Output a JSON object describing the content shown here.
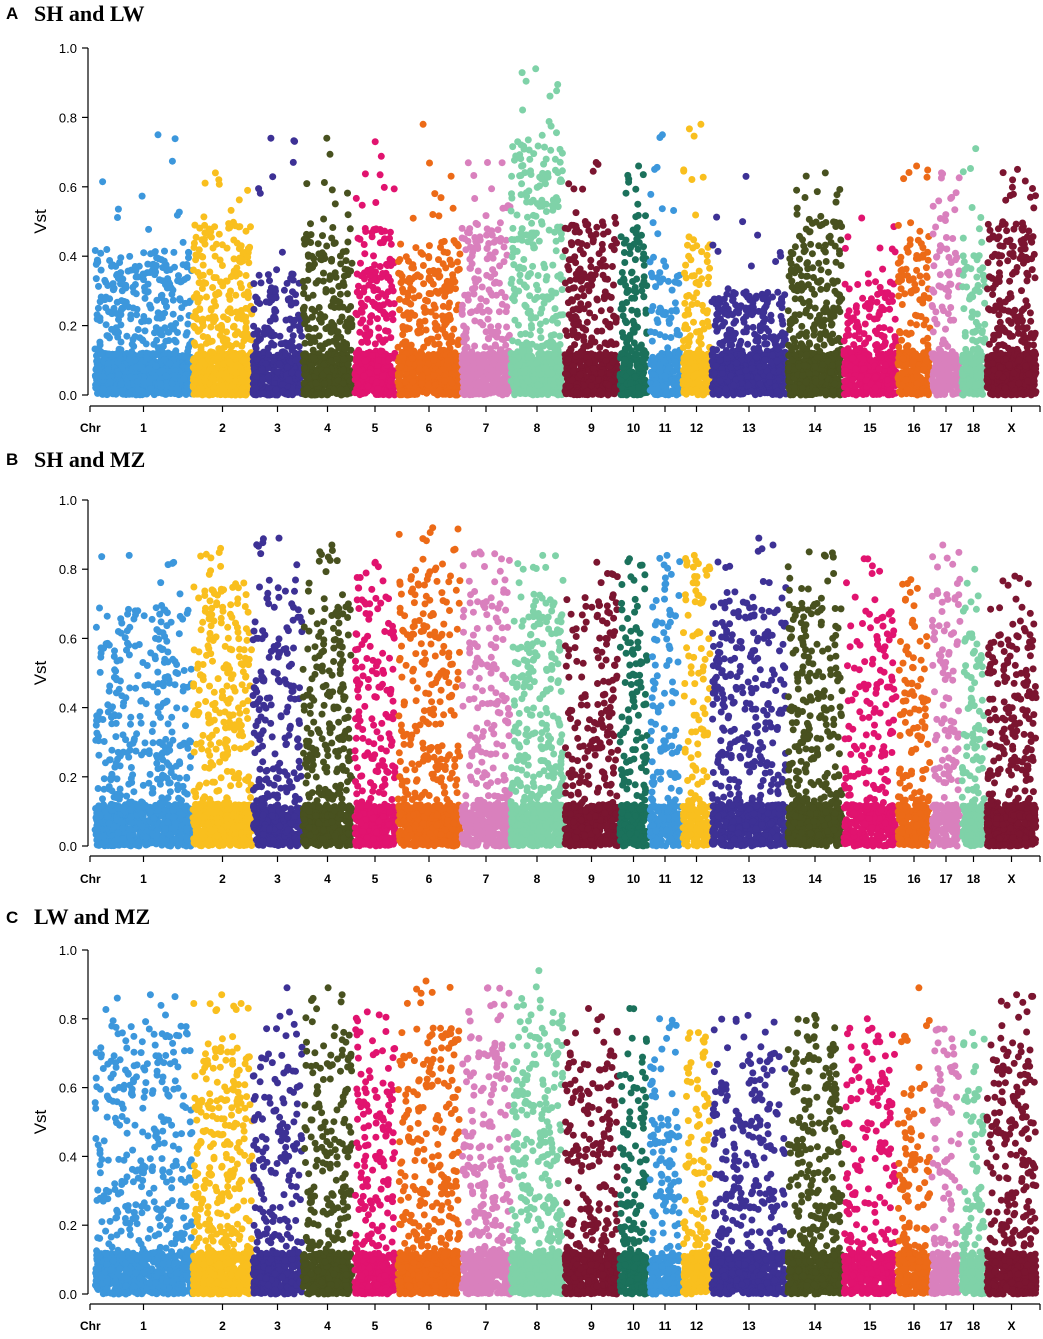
{
  "chart_data": [
    {
      "type": "scatter",
      "panel_label": "A",
      "title": "SH and LW",
      "ylabel": "Vst",
      "xlabel_prefix": "Chr",
      "ylim": [
        0,
        1.0
      ],
      "yticks": [
        "0.0",
        "0.2",
        "0.4",
        "0.6",
        "0.8",
        "1.0"
      ],
      "grid": false,
      "chromosomes": [
        {
          "name": "1",
          "n_points": 900,
          "max": 0.75,
          "typical_max": 0.42
        },
        {
          "name": "2",
          "n_points": 700,
          "max": 0.64,
          "typical_max": 0.5
        },
        {
          "name": "3",
          "n_points": 450,
          "max": 0.74,
          "typical_max": 0.35
        },
        {
          "name": "4",
          "n_points": 500,
          "max": 0.74,
          "typical_max": 0.48
        },
        {
          "name": "5",
          "n_points": 400,
          "max": 0.73,
          "typical_max": 0.48
        },
        {
          "name": "6",
          "n_points": 650,
          "max": 0.78,
          "typical_max": 0.45
        },
        {
          "name": "7",
          "n_points": 450,
          "max": 0.67,
          "typical_max": 0.5
        },
        {
          "name": "8",
          "n_points": 650,
          "max": 0.94,
          "typical_max": 0.75
        },
        {
          "name": "9",
          "n_points": 500,
          "max": 0.67,
          "typical_max": 0.5
        },
        {
          "name": "10",
          "n_points": 280,
          "max": 0.66,
          "typical_max": 0.52
        },
        {
          "name": "11",
          "n_points": 230,
          "max": 0.75,
          "typical_max": 0.4
        },
        {
          "name": "12",
          "n_points": 230,
          "max": 0.78,
          "typical_max": 0.45
        },
        {
          "name": "13",
          "n_points": 650,
          "max": 0.63,
          "typical_max": 0.3
        },
        {
          "name": "14",
          "n_points": 600,
          "max": 0.64,
          "typical_max": 0.5
        },
        {
          "name": "15",
          "n_points": 400,
          "max": 0.51,
          "typical_max": 0.33
        },
        {
          "name": "16",
          "n_points": 280,
          "max": 0.66,
          "typical_max": 0.45
        },
        {
          "name": "17",
          "n_points": 230,
          "max": 0.64,
          "typical_max": 0.55
        },
        {
          "name": "18",
          "n_points": 200,
          "max": 0.71,
          "typical_max": 0.45
        },
        {
          "name": "X",
          "n_points": 550,
          "max": 0.65,
          "typical_max": 0.5
        }
      ]
    },
    {
      "type": "scatter",
      "panel_label": "B",
      "title": "SH and MZ",
      "ylabel": "Vst",
      "xlabel_prefix": "Chr",
      "ylim": [
        0,
        1.0
      ],
      "yticks": [
        "0.0",
        "0.2",
        "0.4",
        "0.6",
        "0.8",
        "1.0"
      ],
      "grid": false,
      "chromosomes": [
        {
          "name": "1",
          "n_points": 900,
          "max": 0.84,
          "typical_max": 0.7
        },
        {
          "name": "2",
          "n_points": 700,
          "max": 0.86,
          "typical_max": 0.75
        },
        {
          "name": "3",
          "n_points": 450,
          "max": 0.89,
          "typical_max": 0.75
        },
        {
          "name": "4",
          "n_points": 500,
          "max": 0.87,
          "typical_max": 0.75
        },
        {
          "name": "5",
          "n_points": 400,
          "max": 0.82,
          "typical_max": 0.75
        },
        {
          "name": "6",
          "n_points": 650,
          "max": 0.92,
          "typical_max": 0.8
        },
        {
          "name": "7",
          "n_points": 450,
          "max": 0.85,
          "typical_max": 0.75
        },
        {
          "name": "8",
          "n_points": 650,
          "max": 0.84,
          "typical_max": 0.72
        },
        {
          "name": "9",
          "n_points": 500,
          "max": 0.82,
          "typical_max": 0.7
        },
        {
          "name": "10",
          "n_points": 280,
          "max": 0.83,
          "typical_max": 0.7
        },
        {
          "name": "11",
          "n_points": 230,
          "max": 0.84,
          "typical_max": 0.75
        },
        {
          "name": "12",
          "n_points": 230,
          "max": 0.84,
          "typical_max": 0.8
        },
        {
          "name": "13",
          "n_points": 650,
          "max": 0.89,
          "typical_max": 0.72
        },
        {
          "name": "14",
          "n_points": 600,
          "max": 0.85,
          "typical_max": 0.72
        },
        {
          "name": "15",
          "n_points": 400,
          "max": 0.83,
          "typical_max": 0.68
        },
        {
          "name": "16",
          "n_points": 280,
          "max": 0.77,
          "typical_max": 0.6
        },
        {
          "name": "17",
          "n_points": 230,
          "max": 0.87,
          "typical_max": 0.75
        },
        {
          "name": "18",
          "n_points": 200,
          "max": 0.8,
          "typical_max": 0.6
        },
        {
          "name": "X",
          "n_points": 550,
          "max": 0.78,
          "typical_max": 0.65
        }
      ]
    },
    {
      "type": "scatter",
      "panel_label": "C",
      "title": "LW and MZ",
      "ylabel": "Vst",
      "xlabel_prefix": "Chr",
      "ylim": [
        0,
        1.0
      ],
      "yticks": [
        "0.0",
        "0.2",
        "0.4",
        "0.6",
        "0.8",
        "1.0"
      ],
      "grid": false,
      "chromosomes": [
        {
          "name": "1",
          "n_points": 900,
          "max": 0.87,
          "typical_max": 0.78
        },
        {
          "name": "2",
          "n_points": 700,
          "max": 0.87,
          "typical_max": 0.72
        },
        {
          "name": "3",
          "n_points": 450,
          "max": 0.89,
          "typical_max": 0.7
        },
        {
          "name": "4",
          "n_points": 500,
          "max": 0.89,
          "typical_max": 0.78
        },
        {
          "name": "5",
          "n_points": 400,
          "max": 0.82,
          "typical_max": 0.72
        },
        {
          "name": "6",
          "n_points": 650,
          "max": 0.91,
          "typical_max": 0.78
        },
        {
          "name": "7",
          "n_points": 450,
          "max": 0.89,
          "typical_max": 0.75
        },
        {
          "name": "8",
          "n_points": 650,
          "max": 0.94,
          "typical_max": 0.82
        },
        {
          "name": "9",
          "n_points": 500,
          "max": 0.83,
          "typical_max": 0.7
        },
        {
          "name": "10",
          "n_points": 280,
          "max": 0.83,
          "typical_max": 0.65
        },
        {
          "name": "11",
          "n_points": 230,
          "max": 0.8,
          "typical_max": 0.68
        },
        {
          "name": "12",
          "n_points": 230,
          "max": 0.76,
          "typical_max": 0.68
        },
        {
          "name": "13",
          "n_points": 650,
          "max": 0.81,
          "typical_max": 0.72
        },
        {
          "name": "14",
          "n_points": 600,
          "max": 0.81,
          "typical_max": 0.72
        },
        {
          "name": "15",
          "n_points": 400,
          "max": 0.8,
          "typical_max": 0.7
        },
        {
          "name": "16",
          "n_points": 280,
          "max": 0.89,
          "typical_max": 0.6
        },
        {
          "name": "17",
          "n_points": 230,
          "max": 0.77,
          "typical_max": 0.7
        },
        {
          "name": "18",
          "n_points": 200,
          "max": 0.76,
          "typical_max": 0.6
        },
        {
          "name": "X",
          "n_points": 550,
          "max": 0.87,
          "typical_max": 0.75
        }
      ]
    }
  ],
  "colors": {
    "chr_palette": [
      "#3c97dc",
      "#f9bf1e",
      "#3d3195",
      "#48511f",
      "#e1136f",
      "#ec6a17",
      "#d980bd",
      "#7fd2a8",
      "#7b1530",
      "#1b715b"
    ],
    "axis": "#000000"
  }
}
